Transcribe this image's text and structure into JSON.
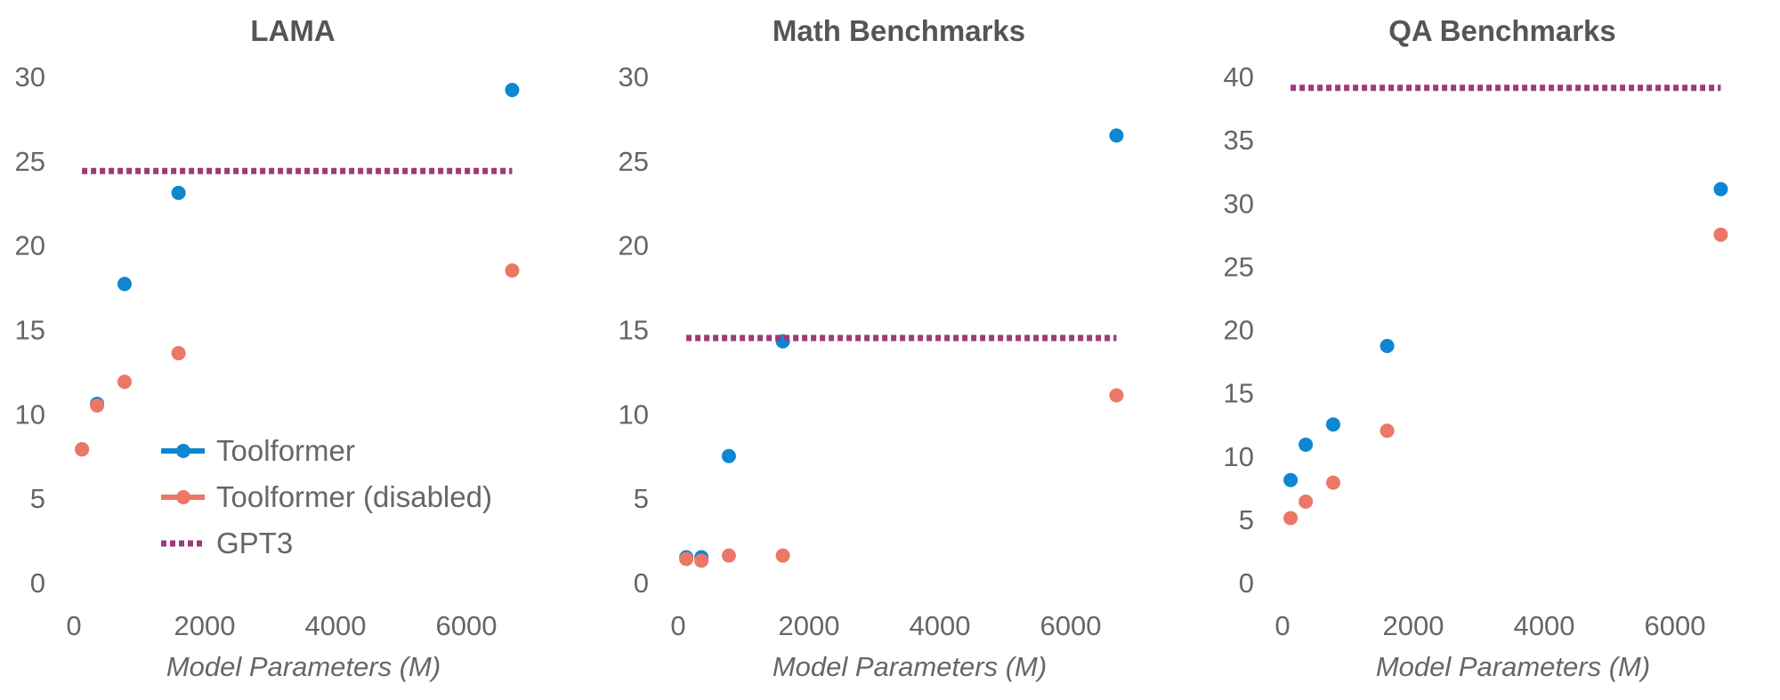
{
  "chart_data": [
    {
      "type": "scatter",
      "title": "LAMA",
      "xlabel": "Model Parameters (M)",
      "ylabel": "",
      "xlim": [
        0,
        6800
      ],
      "ylim": [
        0,
        30
      ],
      "xticks": [
        0,
        2000,
        4000,
        6000
      ],
      "yticks": [
        0,
        5,
        10,
        15,
        20,
        25,
        30
      ],
      "grid": false,
      "legend": "lower-left",
      "series": [
        {
          "name": "Toolformer",
          "marker": "dot",
          "color": "#0F86D1",
          "x": [
            124,
            355,
            775,
            1600,
            6700
          ],
          "y": [
            7.9,
            10.6,
            17.7,
            23.1,
            29.2
          ]
        },
        {
          "name": "Toolformer (disabled)",
          "marker": "dot",
          "color": "#EB7766",
          "x": [
            124,
            355,
            775,
            1600,
            6700
          ],
          "y": [
            7.9,
            10.5,
            11.9,
            13.6,
            18.5
          ]
        },
        {
          "name": "GPT3",
          "style": "dotted-line",
          "color": "#9E3A79",
          "x": [
            124,
            6700
          ],
          "y": [
            24.4,
            24.4
          ]
        }
      ]
    },
    {
      "type": "scatter",
      "title": "Math Benchmarks",
      "xlabel": "Model Parameters (M)",
      "ylabel": "",
      "xlim": [
        0,
        6800
      ],
      "ylim": [
        0,
        30
      ],
      "xticks": [
        0,
        2000,
        4000,
        6000
      ],
      "yticks": [
        0,
        5,
        10,
        15,
        20,
        25,
        30
      ],
      "grid": false,
      "series": [
        {
          "name": "Toolformer",
          "marker": "dot",
          "color": "#0F86D1",
          "x": [
            124,
            355,
            775,
            1600,
            6700
          ],
          "y": [
            1.5,
            1.5,
            7.5,
            14.3,
            26.5
          ]
        },
        {
          "name": "Toolformer (disabled)",
          "marker": "dot",
          "color": "#EB7766",
          "x": [
            124,
            355,
            775,
            1600,
            6700
          ],
          "y": [
            1.4,
            1.3,
            1.6,
            1.6,
            11.1
          ]
        },
        {
          "name": "GPT3",
          "style": "dotted-line",
          "color": "#9E3A79",
          "x": [
            124,
            6700
          ],
          "y": [
            14.5,
            14.5
          ]
        }
      ]
    },
    {
      "type": "scatter",
      "title": "QA Benchmarks",
      "xlabel": "Model Parameters (M)",
      "ylabel": "",
      "xlim": [
        0,
        6800
      ],
      "ylim": [
        0,
        40
      ],
      "xticks": [
        0,
        2000,
        4000,
        6000
      ],
      "yticks": [
        0,
        5,
        10,
        15,
        20,
        25,
        30,
        35,
        40
      ],
      "grid": false,
      "series": [
        {
          "name": "Toolformer",
          "marker": "dot",
          "color": "#0F86D1",
          "x": [
            124,
            355,
            775,
            1600,
            6700
          ],
          "y": [
            8.1,
            10.9,
            12.5,
            18.7,
            31.1
          ]
        },
        {
          "name": "Toolformer (disabled)",
          "marker": "dot",
          "color": "#EB7766",
          "x": [
            124,
            355,
            775,
            1600,
            6700
          ],
          "y": [
            5.1,
            6.4,
            7.9,
            12.0,
            27.5
          ]
        },
        {
          "name": "GPT3",
          "style": "dotted-line",
          "color": "#9E3A79",
          "x": [
            124,
            6700
          ],
          "y": [
            39.1,
            39.1
          ]
        }
      ]
    }
  ]
}
